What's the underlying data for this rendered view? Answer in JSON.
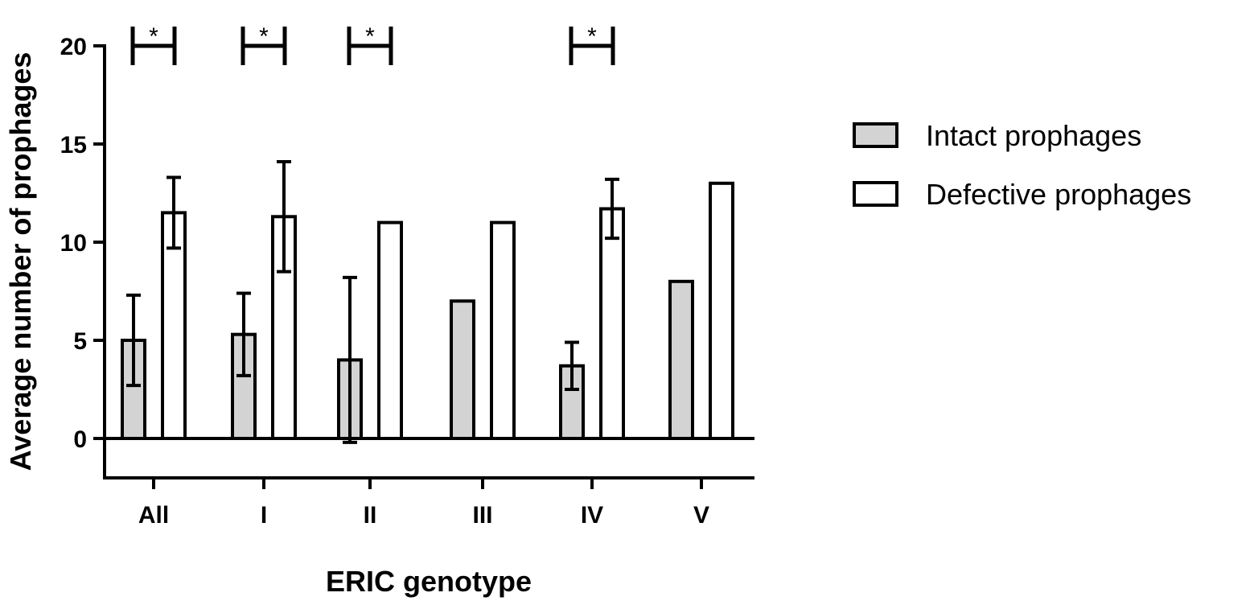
{
  "chart_data": {
    "type": "bar",
    "title": "",
    "xlabel": "ERIC genotype",
    "ylabel": "Average number of prophages",
    "categories": [
      "All",
      "I",
      "II",
      "III",
      "IV",
      "V"
    ],
    "ylim": [
      -2,
      20
    ],
    "yticks": [
      0,
      5,
      10,
      15,
      20
    ],
    "grid": false,
    "legend_position": "right",
    "series": [
      {
        "name": "Intact prophages",
        "color": "#d3d3d3",
        "values": [
          5.0,
          5.3,
          4.0,
          7.0,
          3.7,
          8.0
        ],
        "error_low": [
          2.7,
          3.2,
          -0.2,
          null,
          2.5,
          null
        ],
        "error_high": [
          7.3,
          7.4,
          8.2,
          null,
          4.9,
          null
        ]
      },
      {
        "name": "Defective prophages",
        "color": "#ffffff",
        "values": [
          11.5,
          11.3,
          11.0,
          11.0,
          11.7,
          13.0
        ],
        "error_low": [
          9.7,
          8.5,
          null,
          null,
          10.2,
          null
        ],
        "error_high": [
          13.3,
          14.1,
          null,
          null,
          13.2,
          null
        ]
      }
    ],
    "significance": [
      {
        "category": "All",
        "label": "*"
      },
      {
        "category": "I",
        "label": "*"
      },
      {
        "category": "II",
        "label": "*"
      },
      {
        "category": "IV",
        "label": "*"
      }
    ]
  }
}
